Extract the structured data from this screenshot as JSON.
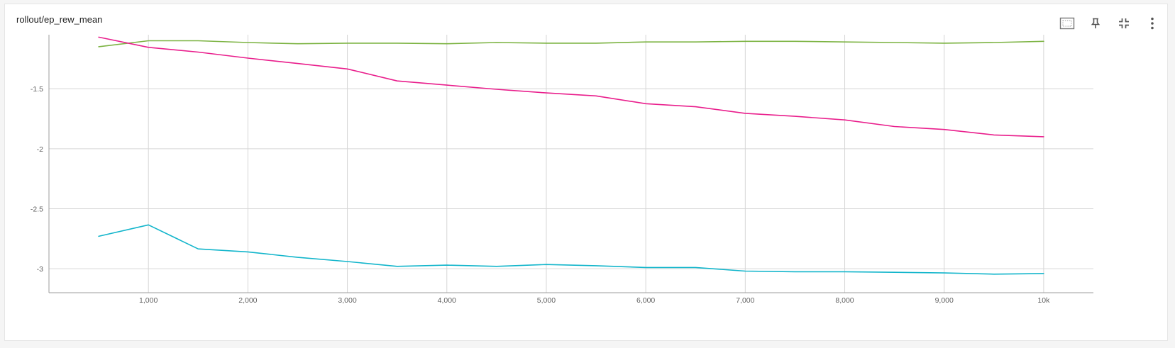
{
  "card": {
    "title": "rollout/ep_rew_mean"
  },
  "toolbar": {
    "buttons": [
      {
        "name": "fit-domain-button",
        "icon": "fit-domain-icon"
      },
      {
        "name": "pin-button",
        "icon": "pin-icon"
      },
      {
        "name": "collapse-button",
        "icon": "collapse-icon"
      },
      {
        "name": "more-button",
        "icon": "more-vert-icon"
      }
    ]
  },
  "chart_data": {
    "type": "line",
    "title": "rollout/ep_rew_mean",
    "xlabel": "",
    "ylabel": "",
    "xlim": [
      0,
      10500
    ],
    "ylim": [
      -3.2,
      -1.05
    ],
    "x_ticks": [
      1000,
      2000,
      3000,
      4000,
      5000,
      6000,
      7000,
      8000,
      9000,
      10000
    ],
    "x_tick_labels": [
      "1,000",
      "2,000",
      "3,000",
      "4,000",
      "5,000",
      "6,000",
      "7,000",
      "8,000",
      "9,000",
      "10k"
    ],
    "y_ticks": [
      -1.5,
      -2,
      -2.5,
      -3
    ],
    "y_tick_labels": [
      "-1.5",
      "-2",
      "-2.5",
      "-3"
    ],
    "grid": true,
    "legend": "none",
    "x": [
      500,
      1000,
      1500,
      2000,
      2500,
      3000,
      3500,
      4000,
      4500,
      5000,
      5500,
      6000,
      6500,
      7000,
      7500,
      8000,
      8500,
      9000,
      9500,
      10000
    ],
    "series": [
      {
        "color": "#7cb342",
        "values": [
          -1.15,
          -1.1,
          -1.1,
          -1.115,
          -1.125,
          -1.12,
          -1.12,
          -1.125,
          -1.115,
          -1.12,
          -1.12,
          -1.11,
          -1.11,
          -1.105,
          -1.105,
          -1.11,
          -1.115,
          -1.12,
          -1.115,
          -1.105
        ]
      },
      {
        "color": "#e91e8c",
        "values": [
          -1.07,
          -1.155,
          -1.195,
          -1.245,
          -1.29,
          -1.335,
          -1.435,
          -1.47,
          -1.505,
          -1.535,
          -1.56,
          -1.625,
          -1.65,
          -1.705,
          -1.73,
          -1.76,
          -1.815,
          -1.84,
          -1.885,
          -1.9
        ]
      },
      {
        "color": "#12b5cb",
        "values": [
          -2.73,
          -2.635,
          -2.835,
          -2.86,
          -2.905,
          -2.94,
          -2.98,
          -2.97,
          -2.98,
          -2.965,
          -2.975,
          -2.99,
          -2.99,
          -3.02,
          -3.025,
          -3.025,
          -3.03,
          -3.035,
          -3.045,
          -3.04
        ]
      }
    ]
  }
}
